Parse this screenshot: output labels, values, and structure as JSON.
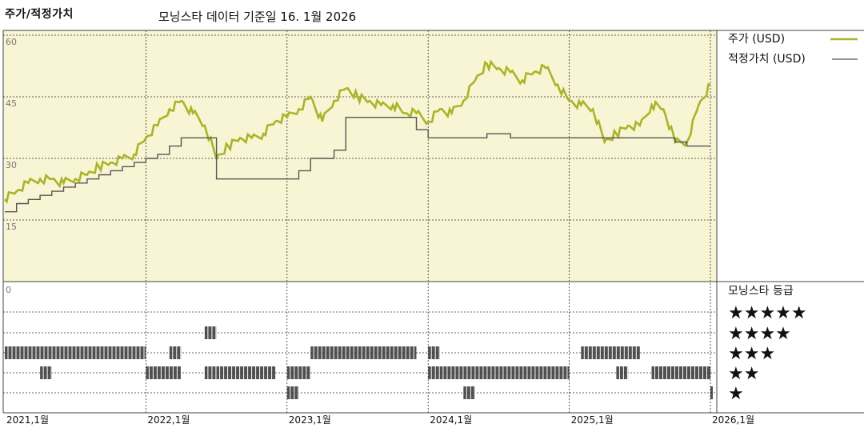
{
  "header": {
    "section_label": "주가/적정가치",
    "title": "모닝스타 데이터 기준일 16. 1월 2026"
  },
  "chart_data": {
    "type": "line",
    "y_ticks": [
      "60",
      "45",
      "30",
      "15"
    ],
    "ylim": [
      0,
      60
    ],
    "x_tick_labels": [
      "2021,1월",
      "2022,1월",
      "2023,1월",
      "2024,1월",
      "2025,1월",
      "2026,1월"
    ],
    "xlim": [
      "2021-01",
      "2026-01"
    ],
    "grid": true,
    "legend_position": "right",
    "series": [
      {
        "name": "주가 (USD)",
        "color": "#a9b428",
        "x": [
          "2021-01",
          "2021-02",
          "2021-03",
          "2021-04",
          "2021-05",
          "2021-06",
          "2021-07",
          "2021-08",
          "2021-09",
          "2021-10",
          "2021-11",
          "2021-12",
          "2022-01",
          "2022-02",
          "2022-03",
          "2022-04",
          "2022-05",
          "2022-06",
          "2022-07",
          "2022-08",
          "2022-09",
          "2022-10",
          "2022-11",
          "2022-12",
          "2023-01",
          "2023-02",
          "2023-03",
          "2023-04",
          "2023-05",
          "2023-06",
          "2023-07",
          "2023-08",
          "2023-09",
          "2023-10",
          "2023-11",
          "2023-12",
          "2024-01",
          "2024-02",
          "2024-03",
          "2024-04",
          "2024-05",
          "2024-06",
          "2024-07",
          "2024-08",
          "2024-09",
          "2024-10",
          "2024-11",
          "2024-12",
          "2025-01",
          "2025-02",
          "2025-03",
          "2025-04",
          "2025-05",
          "2025-06",
          "2025-07",
          "2025-08",
          "2025-09",
          "2025-10",
          "2025-11",
          "2025-12",
          "2026-01"
        ],
        "y": [
          20,
          22,
          24,
          25,
          25,
          24,
          25,
          26,
          28,
          29,
          30,
          31,
          35,
          38,
          42,
          44,
          41,
          38,
          30,
          33,
          35,
          35,
          36,
          39,
          40,
          42,
          45,
          39,
          44,
          47,
          45,
          44,
          43,
          43,
          41,
          41,
          39,
          42,
          41,
          44,
          49,
          53,
          52,
          51,
          49,
          51,
          52,
          48,
          44,
          43,
          42,
          34,
          36,
          38,
          38,
          43,
          42,
          34,
          34,
          43,
          48
        ]
      },
      {
        "name": "적정가치 (USD)",
        "color": "#555555",
        "x": [
          "2021-01",
          "2021-02",
          "2021-03",
          "2021-04",
          "2021-05",
          "2021-06",
          "2021-07",
          "2021-08",
          "2021-09",
          "2021-10",
          "2021-11",
          "2021-12",
          "2022-01",
          "2022-02",
          "2022-03",
          "2022-04",
          "2022-05",
          "2022-06",
          "2022-07",
          "2022-08",
          "2022-09",
          "2022-10",
          "2022-11",
          "2022-12",
          "2023-01",
          "2023-02",
          "2023-03",
          "2023-04",
          "2023-05",
          "2023-06",
          "2023-07",
          "2023-08",
          "2023-09",
          "2023-10",
          "2023-11",
          "2023-12",
          "2024-01",
          "2024-02",
          "2024-03",
          "2024-04",
          "2024-05",
          "2024-06",
          "2024-07",
          "2024-08",
          "2024-09",
          "2024-10",
          "2024-11",
          "2024-12",
          "2025-01",
          "2025-02",
          "2025-03",
          "2025-04",
          "2025-05",
          "2025-06",
          "2025-07",
          "2025-08",
          "2025-09",
          "2025-10",
          "2025-11",
          "2025-12",
          "2026-01"
        ],
        "y": [
          17,
          19,
          20,
          21,
          22,
          23,
          24,
          25,
          26,
          27,
          28,
          29,
          30,
          31,
          33,
          35,
          35,
          35,
          25,
          25,
          25,
          25,
          25,
          25,
          25,
          27,
          30,
          30,
          32,
          40,
          40,
          40,
          40,
          40,
          40,
          37,
          35,
          35,
          35,
          35,
          35,
          36,
          36,
          35,
          35,
          35,
          35,
          35,
          35,
          35,
          35,
          35,
          35,
          35,
          35,
          35,
          35,
          34,
          33,
          33,
          33
        ]
      }
    ],
    "rating_panel": {
      "title": "모닝스타 등급",
      "zero_label": "0",
      "levels": [
        "★★★★★",
        "★★★★",
        "★★★",
        "★★",
        "★"
      ],
      "segments": [
        {
          "stars": 3,
          "from": "2021-01",
          "to": "2022-01"
        },
        {
          "stars": 2,
          "from": "2021-04",
          "to": "2021-05"
        },
        {
          "stars": 3,
          "from": "2022-03",
          "to": "2022-04"
        },
        {
          "stars": 2,
          "from": "2022-01",
          "to": "2022-04"
        },
        {
          "stars": 4,
          "from": "2022-06",
          "to": "2022-07"
        },
        {
          "stars": 2,
          "from": "2022-06",
          "to": "2022-07"
        },
        {
          "stars": 2,
          "from": "2022-07",
          "to": "2022-12"
        },
        {
          "stars": 1,
          "from": "2023-01",
          "to": "2023-02"
        },
        {
          "stars": 2,
          "from": "2023-01",
          "to": "2023-03"
        },
        {
          "stars": 3,
          "from": "2023-03",
          "to": "2023-12"
        },
        {
          "stars": 2,
          "from": "2024-01",
          "to": "2024-02"
        },
        {
          "stars": 3,
          "from": "2024-01",
          "to": "2024-02"
        },
        {
          "stars": 1,
          "from": "2024-04",
          "to": "2024-05"
        },
        {
          "stars": 2,
          "from": "2024-02",
          "to": "2025-01"
        },
        {
          "stars": 3,
          "from": "2025-02",
          "to": "2025-07"
        },
        {
          "stars": 2,
          "from": "2025-05",
          "to": "2025-06"
        },
        {
          "stars": 2,
          "from": "2025-08",
          "to": "2026-01"
        },
        {
          "stars": 1,
          "from": "2026-01",
          "to": "2026-01"
        }
      ]
    }
  },
  "colors": {
    "plot_background": "#f8f5d4",
    "price_line": "#a9b428",
    "fair_value_line": "#555555",
    "grid_dash": "#333333"
  }
}
